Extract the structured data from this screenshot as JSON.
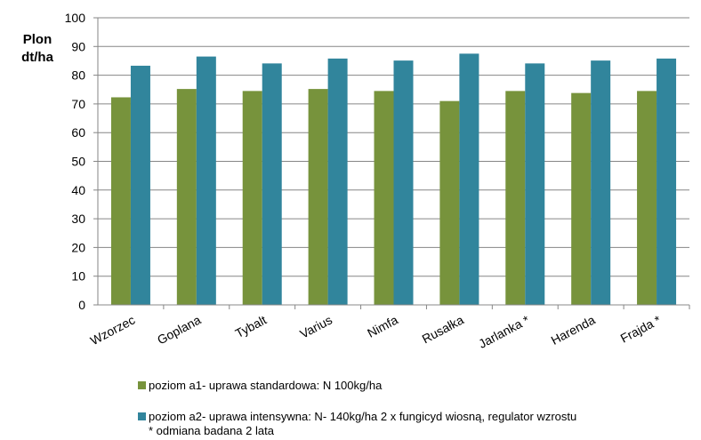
{
  "chart_data": {
    "type": "bar",
    "ylabel_line1": "Plon",
    "ylabel_line2": "dt/ha",
    "ylim": [
      0,
      100
    ],
    "yticks": [
      0,
      10,
      20,
      30,
      40,
      50,
      60,
      70,
      80,
      90,
      100
    ],
    "grid": true,
    "legend_placement": "bottom",
    "categories": [
      "Wzorzec",
      "Goplana",
      "Tybalt",
      "Varius",
      "Nimfa",
      "Rusałka",
      "Jarlanka *",
      "Harenda",
      "Frajda *"
    ],
    "series": [
      {
        "name": "poziom a1- uprawa standardowa: N 100kg/ha",
        "color": "#77933c",
        "values": [
          72.3,
          75.2,
          74.5,
          75.2,
          74.5,
          71.0,
          74.5,
          73.8,
          74.5
        ]
      },
      {
        "name": "poziom a2- uprawa intensywna: N- 140kg/ha 2 x fungicyd wiosną, regulator wzrostu",
        "color": "#31859c",
        "values": [
          83.3,
          86.5,
          84.1,
          85.8,
          85.1,
          87.5,
          84.1,
          85.1,
          85.8
        ]
      }
    ]
  },
  "legend_note": "* odmiana badana 2 lata"
}
